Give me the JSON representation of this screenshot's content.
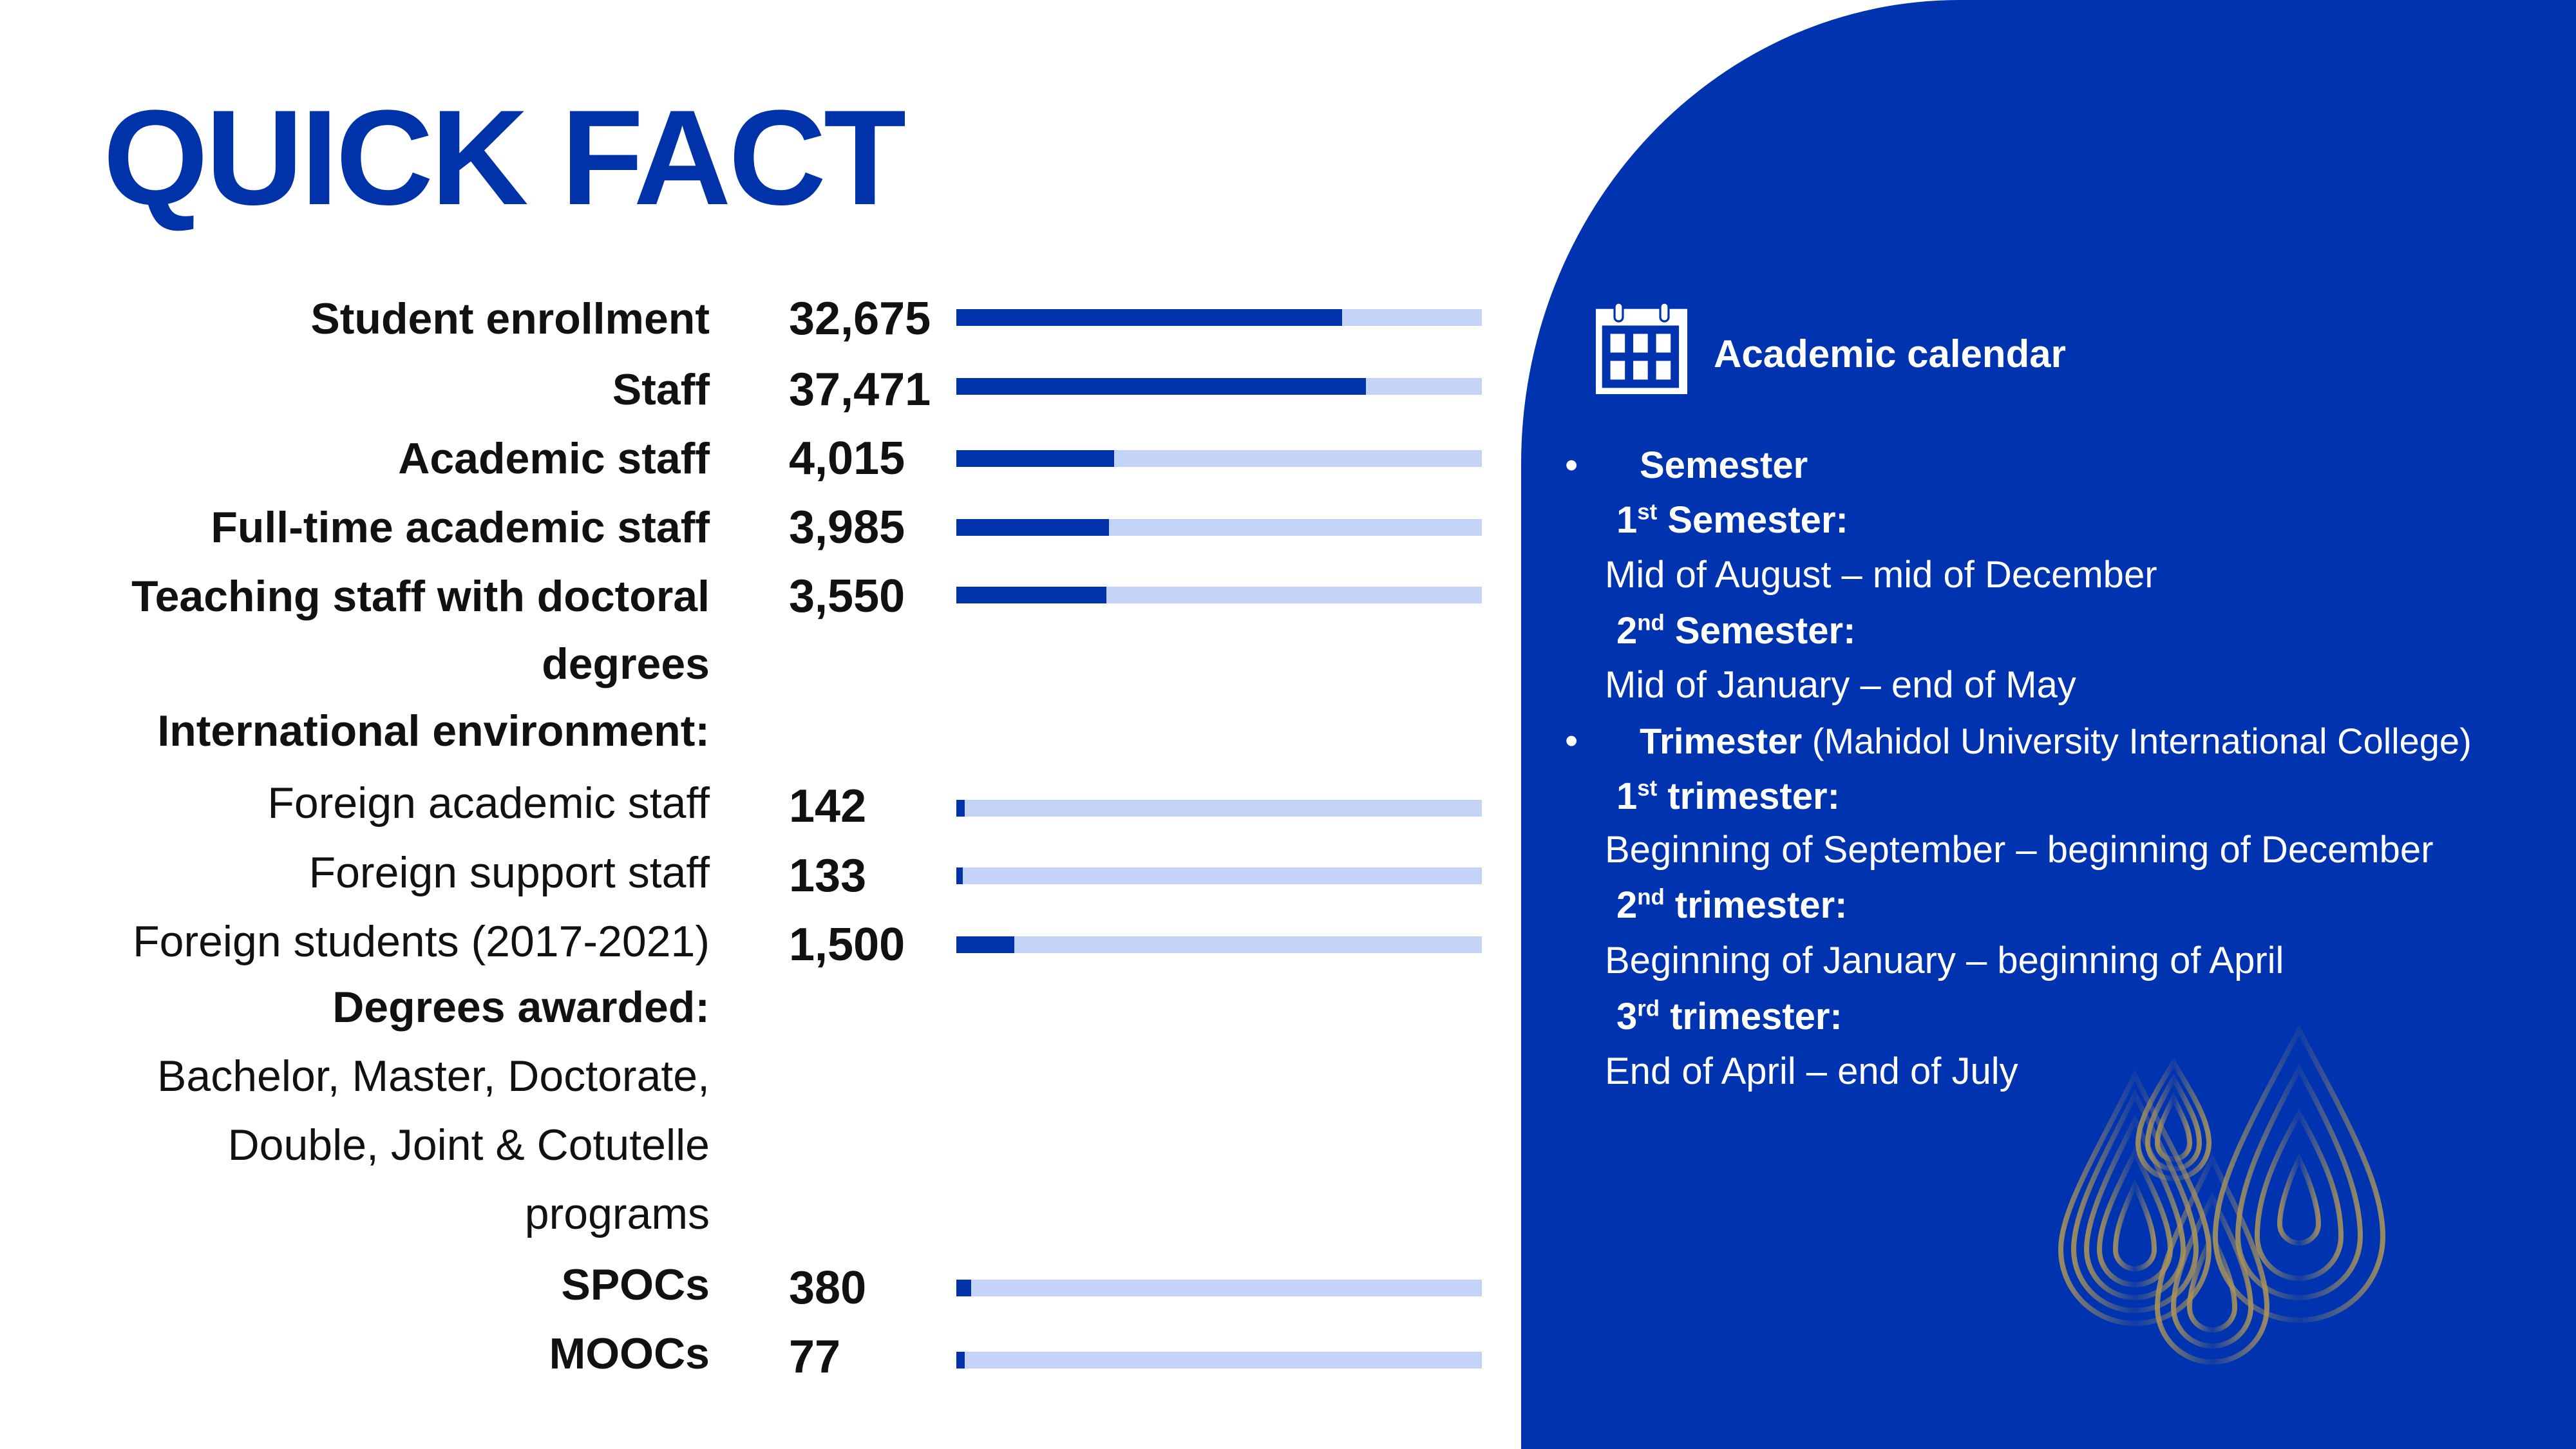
{
  "title": "QUICK FACT",
  "facts": [
    {
      "label": "Student enrollment",
      "value": "32,675",
      "fill": 0.734
    },
    {
      "label": "Staff",
      "value": "37,471",
      "fill": 0.78
    },
    {
      "label": "Academic staff",
      "value": "4,015",
      "fill": 0.3
    },
    {
      "label": "Full-time academic staff",
      "value": "3,985",
      "fill": 0.29
    },
    {
      "label_line1": "Teaching staff with doctoral",
      "label_line2": "degrees",
      "value": "3,550",
      "fill": 0.285
    }
  ],
  "international": {
    "heading": "International environment:",
    "items": [
      {
        "label": "Foreign academic staff",
        "value": "142",
        "fill": 0.016
      },
      {
        "label": "Foreign support staff",
        "value": "133",
        "fill": 0.012
      },
      {
        "label": "Foreign students (2017-2021)",
        "value": "1,500",
        "fill": 0.11
      }
    ]
  },
  "degrees": {
    "heading": "Degrees awarded:",
    "lines": [
      "Bachelor, Master, Doctorate,",
      "Double, Joint & Cotutelle",
      "programs"
    ]
  },
  "online": [
    {
      "label": "SPOCs",
      "value": "380",
      "fill": 0.028
    },
    {
      "label": "MOOCs",
      "value": "77",
      "fill": 0.016
    }
  ],
  "calendar": {
    "icon": "calendar-icon",
    "title": "Academic calendar",
    "semester": {
      "heading": "Semester",
      "first_num": "1",
      "first_sup": "st",
      "first_label": "Semester:",
      "first_period": "Mid of August – mid of December",
      "second_num": "2",
      "second_sup": "nd",
      "second_label": "Semester:",
      "second_period": "Mid of January – end of May"
    },
    "trimester": {
      "heading": "Trimester",
      "note": " (Mahidol University International College)",
      "t1_num": "1",
      "t1_sup": "st",
      "t1_label": "trimester:",
      "t1_period": "Beginning of September – beginning of December",
      "t2_num": "2",
      "t2_sup": "nd",
      "t2_label": "trimester:",
      "t2_period": "Beginning of January – beginning of April",
      "t3_num": "3",
      "t3_sup": "rd",
      "t3_label": "trimester:",
      "t3_period": "End of April – end of July"
    }
  },
  "colors": {
    "brand_blue": "#0033AA",
    "bar_track": "#C3D3F7",
    "gold": "#A8935A"
  }
}
